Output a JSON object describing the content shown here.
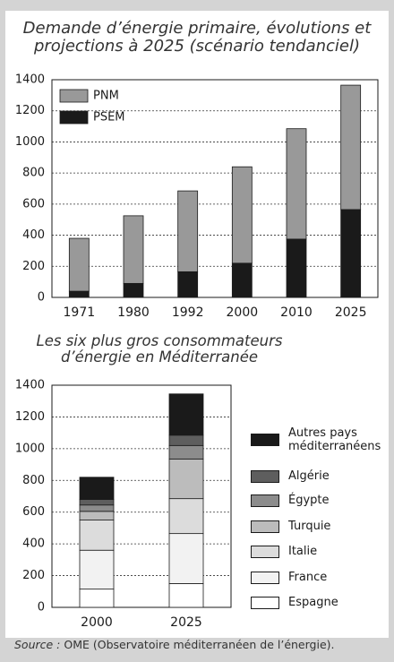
{
  "chart_data": [
    {
      "type": "stacked_bar",
      "title": "Demande d’énergie primaire, évolutions et projections à 2025  (scénario tendanciel)",
      "categories": [
        "1971",
        "1980",
        "1992",
        "2000",
        "2010",
        "2025"
      ],
      "series": [
        {
          "name": "PSEM",
          "color": "#1a1a1a",
          "values": [
            40,
            90,
            165,
            220,
            375,
            565
          ]
        },
        {
          "name": "PNM",
          "color": "#999999",
          "values": [
            340,
            435,
            520,
            620,
            710,
            800
          ]
        }
      ],
      "ylim": [
        0,
        1400
      ],
      "yticks": [
        0,
        200,
        400,
        600,
        800,
        1000,
        1200,
        1400
      ],
      "grid": true,
      "legend": "top-left"
    },
    {
      "type": "stacked_bar",
      "title": "Les six plus gros consommateurs d’énergie en Méditerranée",
      "categories": [
        "2000",
        "2025"
      ],
      "series": [
        {
          "name": "Espagne",
          "color": "#ffffff",
          "values": [
            115,
            150
          ]
        },
        {
          "name": "France",
          "color": "#f2f2f2",
          "values": [
            245,
            315
          ]
        },
        {
          "name": "Italie",
          "color": "#dcdcdc",
          "values": [
            190,
            220
          ]
        },
        {
          "name": "Turquie",
          "color": "#bcbcbc",
          "values": [
            55,
            250
          ]
        },
        {
          "name": "Égypte",
          "color": "#8c8c8c",
          "values": [
            40,
            85
          ]
        },
        {
          "name": "Algérie",
          "color": "#5e5e5e",
          "values": [
            35,
            65
          ]
        },
        {
          "name": "Autres pays méditerranéens",
          "color": "#1a1a1a",
          "values": [
            140,
            260
          ]
        }
      ],
      "ylim": [
        0,
        1400
      ],
      "yticks": [
        0,
        200,
        400,
        600,
        800,
        1000,
        1200,
        1400
      ],
      "grid": true,
      "legend": "right"
    }
  ],
  "source": {
    "label": "Source :",
    "text": "OME (Observatoire méditerranéen de l’énergie)."
  }
}
